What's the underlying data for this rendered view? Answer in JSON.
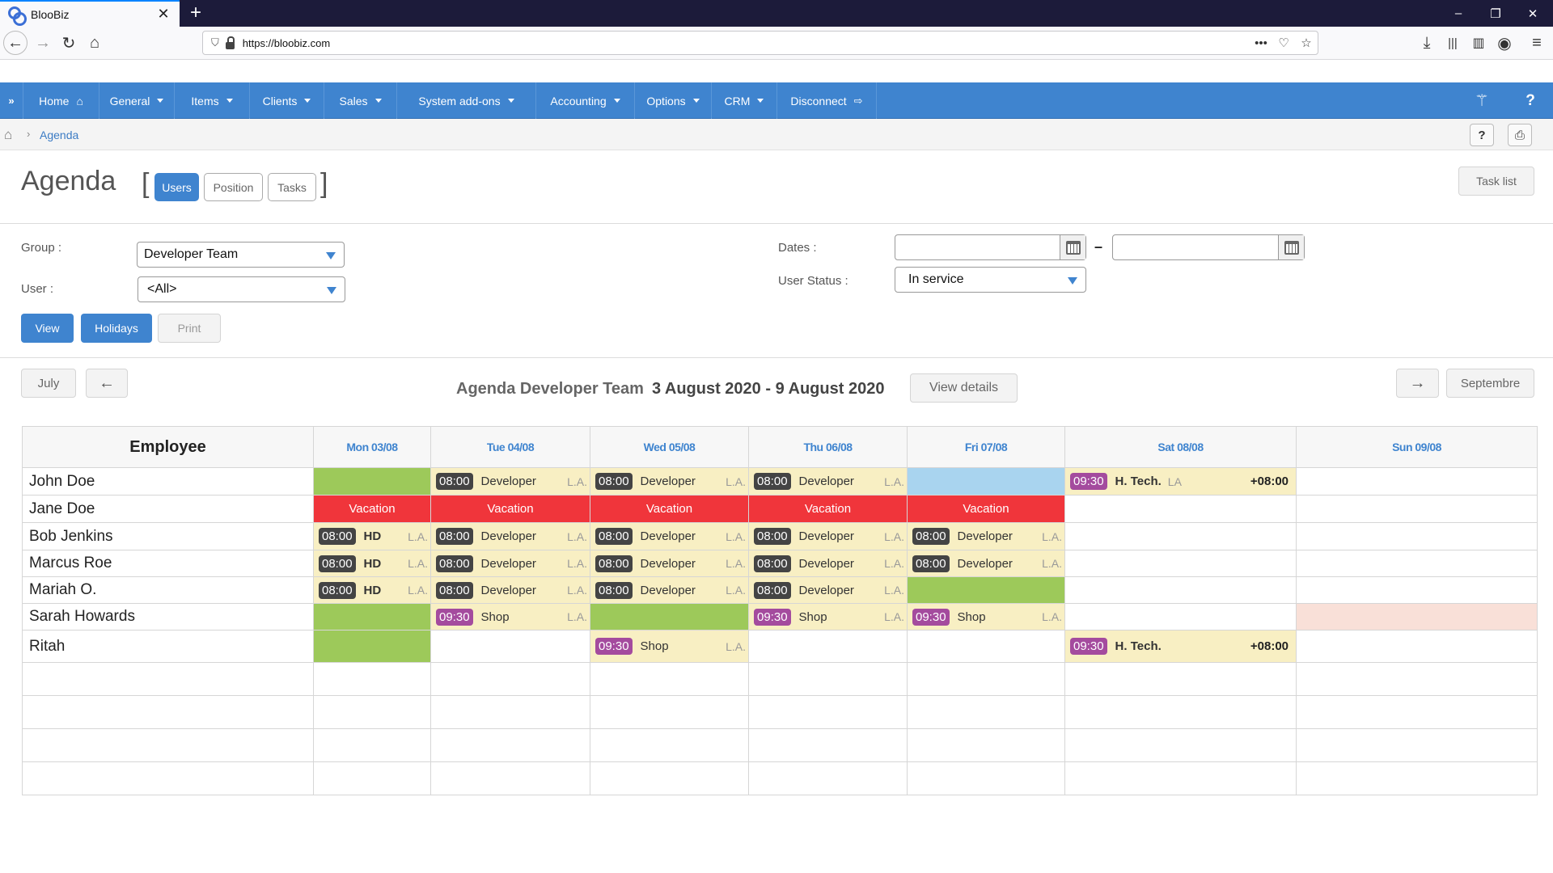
{
  "browser": {
    "tab_title": "BlooBiz",
    "url": "https://bloobiz.com"
  },
  "menu": {
    "items": [
      {
        "label": "Home",
        "icon": "home-icon"
      },
      {
        "label": "General",
        "dropdown": true
      },
      {
        "label": "Items",
        "dropdown": true
      },
      {
        "label": "Clients",
        "dropdown": true
      },
      {
        "label": "Sales",
        "dropdown": true
      },
      {
        "label": "System add-ons",
        "dropdown": true
      },
      {
        "label": "Accounting",
        "dropdown": true
      },
      {
        "label": "Options",
        "dropdown": true
      },
      {
        "label": "CRM",
        "dropdown": true
      },
      {
        "label": "Disconnect",
        "icon": "logout-icon"
      }
    ]
  },
  "breadcrumb": {
    "current": "Agenda"
  },
  "header": {
    "title": "Agenda",
    "tabs": [
      "Users",
      "Position",
      "Tasks"
    ],
    "task_list": "Task list"
  },
  "filters": {
    "group_label": "Group :",
    "group_value": "Developer Team",
    "user_label": "User :",
    "user_value": "<All>",
    "dates_label": "Dates :",
    "dates_separator": "–",
    "status_label": "User Status :",
    "status_value": "In service",
    "view": "View",
    "holidays": "Holidays",
    "print": "Print"
  },
  "agenda_nav": {
    "prev_month": "July",
    "next_month": "Septembre",
    "title": "Agenda Developer Team",
    "range": "3 August 2020 - 9 August 2020",
    "view_details": "View details"
  },
  "table": {
    "employee_header": "Employee",
    "days": [
      "Mon 03/08",
      "Tue 04/08",
      "Wed 05/08",
      "Thu 06/08",
      "Fri 07/08",
      "Sat 08/08",
      "Sun 09/08"
    ],
    "rows": [
      {
        "name": "John Doe",
        "cells": [
          {
            "type": "green"
          },
          {
            "type": "event",
            "time": "08:00",
            "label": "Developer",
            "la": "L.A."
          },
          {
            "type": "event",
            "time": "08:00",
            "label": "Developer",
            "la": "L.A."
          },
          {
            "type": "event",
            "time": "08:00",
            "label": "Developer",
            "la": "L.A."
          },
          {
            "type": "blue"
          },
          {
            "type": "event",
            "time": "09:30",
            "time_color": "purple",
            "label": "H. Tech.",
            "bold": true,
            "la": "LA",
            "la_inline": true,
            "extra": "+08:00"
          },
          {
            "type": "empty"
          }
        ]
      },
      {
        "name": "Jane Doe",
        "cells": [
          {
            "type": "vacation",
            "label": "Vacation"
          },
          {
            "type": "vacation",
            "label": "Vacation"
          },
          {
            "type": "vacation",
            "label": "Vacation"
          },
          {
            "type": "vacation",
            "label": "Vacation"
          },
          {
            "type": "vacation",
            "label": "Vacation"
          },
          {
            "type": "empty"
          },
          {
            "type": "empty"
          }
        ]
      },
      {
        "name": "Bob Jenkins",
        "cells": [
          {
            "type": "event",
            "time": "08:00",
            "label": "HD",
            "bold": true,
            "la": "L.A."
          },
          {
            "type": "event",
            "time": "08:00",
            "label": "Developer",
            "la": "L.A."
          },
          {
            "type": "event",
            "time": "08:00",
            "label": "Developer",
            "la": "L.A."
          },
          {
            "type": "event",
            "time": "08:00",
            "label": "Developer",
            "la": "L.A."
          },
          {
            "type": "event",
            "time": "08:00",
            "label": "Developer",
            "la": "L.A."
          },
          {
            "type": "empty"
          },
          {
            "type": "empty"
          }
        ]
      },
      {
        "name": "Marcus Roe",
        "cells": [
          {
            "type": "event",
            "time": "08:00",
            "label": "HD",
            "bold": true,
            "la": "L.A."
          },
          {
            "type": "event",
            "time": "08:00",
            "label": "Developer",
            "la": "L.A."
          },
          {
            "type": "event",
            "time": "08:00",
            "label": "Developer",
            "la": "L.A."
          },
          {
            "type": "event",
            "time": "08:00",
            "label": "Developer",
            "la": "L.A."
          },
          {
            "type": "event",
            "time": "08:00",
            "label": "Developer",
            "la": "L.A."
          },
          {
            "type": "empty"
          },
          {
            "type": "empty"
          }
        ]
      },
      {
        "name": "Mariah O.",
        "cells": [
          {
            "type": "event",
            "time": "08:00",
            "label": "HD",
            "bold": true,
            "la": "L.A."
          },
          {
            "type": "event",
            "time": "08:00",
            "label": "Developer",
            "la": "L.A."
          },
          {
            "type": "event",
            "time": "08:00",
            "label": "Developer",
            "la": "L.A."
          },
          {
            "type": "event",
            "time": "08:00",
            "label": "Developer",
            "la": "L.A."
          },
          {
            "type": "green"
          },
          {
            "type": "empty"
          },
          {
            "type": "empty"
          }
        ]
      },
      {
        "name": "Sarah Howards",
        "cells": [
          {
            "type": "green"
          },
          {
            "type": "event",
            "time": "09:30",
            "time_color": "purple",
            "label": "Shop",
            "la": "L.A."
          },
          {
            "type": "green"
          },
          {
            "type": "event",
            "time": "09:30",
            "time_color": "purple",
            "label": "Shop",
            "la": "L.A."
          },
          {
            "type": "event",
            "time": "09:30",
            "time_color": "purple",
            "label": "Shop",
            "la": "L.A."
          },
          {
            "type": "empty"
          },
          {
            "type": "peach"
          }
        ]
      },
      {
        "name": "Ritah",
        "cells": [
          {
            "type": "green"
          },
          {
            "type": "empty"
          },
          {
            "type": "event",
            "time": "09:30",
            "time_color": "purple",
            "label": "Shop",
            "la": "L.A."
          },
          {
            "type": "empty"
          },
          {
            "type": "empty"
          },
          {
            "type": "event",
            "time": "09:30",
            "time_color": "purple",
            "label": "H. Tech.",
            "bold": true,
            "extra": "+08:00"
          },
          {
            "type": "empty"
          }
        ]
      }
    ],
    "empty_rows": 4
  }
}
